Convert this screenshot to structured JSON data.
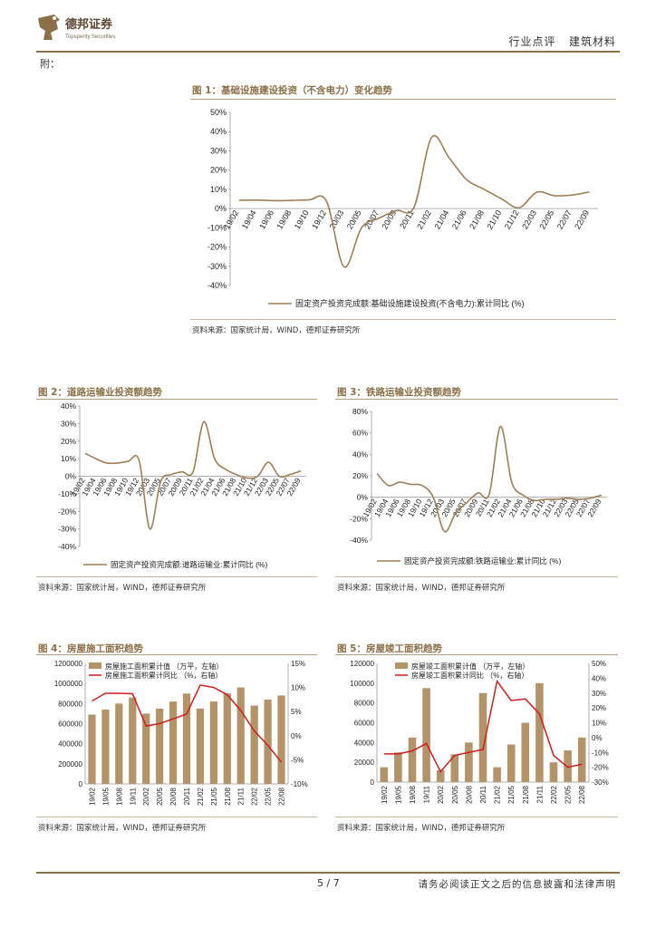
{
  "header": {
    "brand_cn": "德邦证券",
    "brand_en": "Topsperity Securities",
    "category": "行业点评",
    "sector": "建筑材料"
  },
  "section_label": "附：",
  "figures": {
    "fig1": {
      "title": "图 1：基础设施建设投资（不含电力）变化趋势",
      "legend": "固定资产投资完成额:基础设施建设投资(不含电力):累计同比 (%)",
      "source": "资料来源：国家统计局，WIND，德邦证券研究所"
    },
    "fig2": {
      "title": "图 2：道路运输业投资额趋势",
      "legend": "固定资产投资完成额:道路运输业:累计同比 (%)",
      "source": "资料来源：国家统计局，WIND，德邦证券研究所"
    },
    "fig3": {
      "title": "图 3：铁路运输业投资额趋势",
      "legend": "固定资产投资完成额:铁路运输业:累计同比 (%)",
      "source": "资料来源：国家统计局，WIND，德邦证券研究所"
    },
    "fig4": {
      "title": "图 4：房屋施工面积趋势",
      "legend_bar": "房屋施工面积累计值 （万平，左轴）",
      "legend_line": "房屋施工面积累计同比 （%，右轴）",
      "source": "资料来源：国家统计局，WIND，德邦证券研究所"
    },
    "fig5": {
      "title": "图 5：房屋竣工面积趋势",
      "legend_bar": "房屋竣工面积累计值 （万平，左轴）",
      "legend_line": "房屋竣工面积累计同比 （%，右轴）",
      "source": "资料来源：国家统计局，WIND，德邦证券研究所"
    }
  },
  "footer": {
    "page": "5 / 7",
    "disclaimer": "请务必阅读正文之后的信息披露和法律声明"
  },
  "colors": {
    "line_brown": "#A07E54",
    "bar_brown": "#B39468",
    "line_red": "#D01C1C",
    "accent": "#8B6F47"
  },
  "chart_data": [
    {
      "id": "fig1",
      "type": "line",
      "x": [
        "19/02",
        "19/04",
        "19/06",
        "19/08",
        "19/10",
        "19/12",
        "20/03",
        "20/05",
        "20/07",
        "20/09",
        "20/11",
        "21/02",
        "21/04",
        "21/06",
        "21/08",
        "21/10",
        "21/12",
        "22/03",
        "22/05",
        "22/07",
        "22/09"
      ],
      "series": [
        {
          "name": "固定资产投资完成额:基础设施建设投资(不含电力):累计同比 (%)",
          "values": [
            4.3,
            4.4,
            4.1,
            4.2,
            4.5,
            3.8,
            -30.3,
            -10,
            -5,
            -1,
            0.7,
            37,
            26.4,
            15,
            10,
            5,
            0.4,
            8.5,
            6.7,
            7,
            8.6
          ]
        }
      ],
      "ylim": [
        -40,
        50
      ],
      "yticks": [
        -40,
        -30,
        -20,
        -10,
        0,
        10,
        20,
        30,
        40,
        50
      ],
      "y_unit": "%"
    },
    {
      "id": "fig2",
      "type": "line",
      "x": [
        "19/02",
        "19/04",
        "19/06",
        "19/08",
        "19/10",
        "19/12",
        "20/03",
        "20/05",
        "20/07",
        "20/09",
        "20/11",
        "21/02",
        "21/04",
        "21/06",
        "21/08",
        "21/10",
        "21/12",
        "22/03",
        "22/05",
        "22/07",
        "22/09"
      ],
      "series": [
        {
          "name": "固定资产投资完成额:道路运输业:累计同比 (%)",
          "values": [
            13,
            10,
            7.5,
            7.5,
            8.5,
            9,
            -30,
            -3,
            1,
            2.5,
            2.5,
            31,
            10,
            4,
            1,
            -1,
            0,
            8,
            0,
            1,
            3
          ]
        }
      ],
      "ylim": [
        -40,
        40
      ],
      "yticks": [
        -40,
        -30,
        -20,
        -10,
        0,
        10,
        20,
        30,
        40
      ],
      "y_unit": "%"
    },
    {
      "id": "fig3",
      "type": "line",
      "x": [
        "19/02",
        "19/04",
        "19/06",
        "19/08",
        "19/10",
        "19/12",
        "20/03",
        "20/05",
        "20/07",
        "20/09",
        "20/11",
        "21/02",
        "21/04",
        "21/06",
        "21/08",
        "21/10",
        "21/12",
        "22/03",
        "22/05",
        "22/07",
        "22/09"
      ],
      "series": [
        {
          "name": "固定资产投资完成额:铁路运输业:累计同比 (%)",
          "values": [
            22,
            11,
            14,
            12,
            11,
            0,
            -32,
            -15,
            -5,
            4,
            3,
            66,
            14,
            2,
            -3,
            -2,
            -2,
            -1,
            -2,
            -1,
            2
          ]
        }
      ],
      "ylim": [
        -40,
        80
      ],
      "yticks": [
        -40,
        -20,
        0,
        20,
        40,
        60,
        80
      ],
      "y_unit": "%"
    },
    {
      "id": "fig4",
      "type": "bar",
      "x": [
        "19/02",
        "19/05",
        "19/08",
        "19/11",
        "20/02",
        "20/05",
        "20/08",
        "20/11",
        "21/02",
        "21/05",
        "21/08",
        "21/11",
        "22/02",
        "22/05",
        "22/08"
      ],
      "series": [
        {
          "name": "房屋施工面积累计值 （万平，左轴）",
          "values": [
            690000,
            740000,
            800000,
            860000,
            700000,
            750000,
            820000,
            900000,
            750000,
            820000,
            900000,
            960000,
            780000,
            840000,
            880000
          ],
          "axis": "left"
        },
        {
          "name": "房屋施工面积累计同比 （%，右轴）",
          "values": [
            7.2,
            8.8,
            8.8,
            8.7,
            2.0,
            2.5,
            3.5,
            4.5,
            10.5,
            10.0,
            8.5,
            5.2,
            1.0,
            -2.0,
            -5.5
          ],
          "axis": "right"
        }
      ],
      "ylim_left": [
        0,
        1200000
      ],
      "yticks_left": [
        0,
        200000,
        400000,
        600000,
        800000,
        1000000,
        1200000
      ],
      "ylim_right": [
        -10,
        15
      ],
      "yticks_right": [
        -10,
        -5,
        0,
        5,
        10,
        15
      ]
    },
    {
      "id": "fig5",
      "type": "bar",
      "x": [
        "19/02",
        "19/05",
        "19/08",
        "19/11",
        "20/02",
        "20/05",
        "20/08",
        "20/11",
        "21/02",
        "21/05",
        "21/08",
        "21/11",
        "22/02",
        "22/05",
        "22/08"
      ],
      "series": [
        {
          "name": "房屋竣工面积累计值 （万平，左轴）",
          "values": [
            15000,
            30000,
            45000,
            95000,
            12000,
            28000,
            40000,
            90000,
            15000,
            38000,
            60000,
            100000,
            20000,
            32000,
            45000
          ],
          "axis": "left"
        },
        {
          "name": "房屋竣工面积累计同比 （%，右轴）",
          "values": [
            -11,
            -11,
            -9,
            -4,
            -23,
            -12,
            -10,
            -8,
            38,
            25,
            26,
            16,
            -12,
            -20,
            -18
          ],
          "axis": "right"
        }
      ],
      "ylim_left": [
        0,
        120000
      ],
      "yticks_left": [
        0,
        20000,
        40000,
        60000,
        80000,
        100000,
        120000
      ],
      "ylim_right": [
        -30,
        50
      ],
      "yticks_right": [
        -30,
        -20,
        -10,
        0,
        10,
        20,
        30,
        40,
        50
      ]
    }
  ]
}
